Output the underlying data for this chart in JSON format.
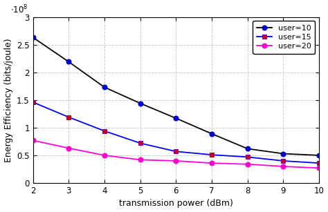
{
  "x": [
    2,
    3,
    4,
    5,
    6,
    7,
    8,
    9,
    10
  ],
  "user10": [
    263000000.0,
    219000000.0,
    173000000.0,
    144000000.0,
    117000000.0,
    89000000.0,
    62000000.0,
    53000000.0,
    50000000.0
  ],
  "user15": [
    146000000.0,
    119000000.0,
    94000000.0,
    72000000.0,
    57000000.0,
    51000000.0,
    47000000.0,
    40000000.0,
    36000000.0
  ],
  "user20": [
    77000000.0,
    63000000.0,
    50000000.0,
    42000000.0,
    40000000.0,
    36000000.0,
    34000000.0,
    30000000.0,
    27000000.0
  ],
  "xlabel": "transmission power (dBm)",
  "ylabel": "Energy Efficiency (bits/joule)",
  "legend": [
    "user=10",
    "user=15",
    "user=20"
  ],
  "colors": [
    "black",
    "#0000cd",
    "#ff00ff"
  ],
  "line_colors": [
    "black",
    "#2222dd",
    "#ff00cc"
  ],
  "markers": [
    "o",
    "s",
    "o"
  ],
  "marker_face": [
    "#1111cc",
    "#cc2222",
    "#ff00cc"
  ],
  "xlim": [
    2,
    10
  ],
  "ylim": [
    0,
    300000000.0
  ],
  "yticks": [
    0,
    50000000.0,
    100000000.0,
    150000000.0,
    200000000.0,
    250000000.0,
    300000000.0
  ],
  "ytick_labels": [
    "0",
    "0.5",
    "1",
    "1.5",
    "2",
    "2.5",
    "3"
  ],
  "xticks": [
    2,
    3,
    4,
    5,
    6,
    7,
    8,
    9,
    10
  ],
  "grid_color": "#cccccc",
  "background_color": "#ffffff",
  "legend_fontsize": 8,
  "axis_fontsize": 9,
  "tick_fontsize": 8.5
}
